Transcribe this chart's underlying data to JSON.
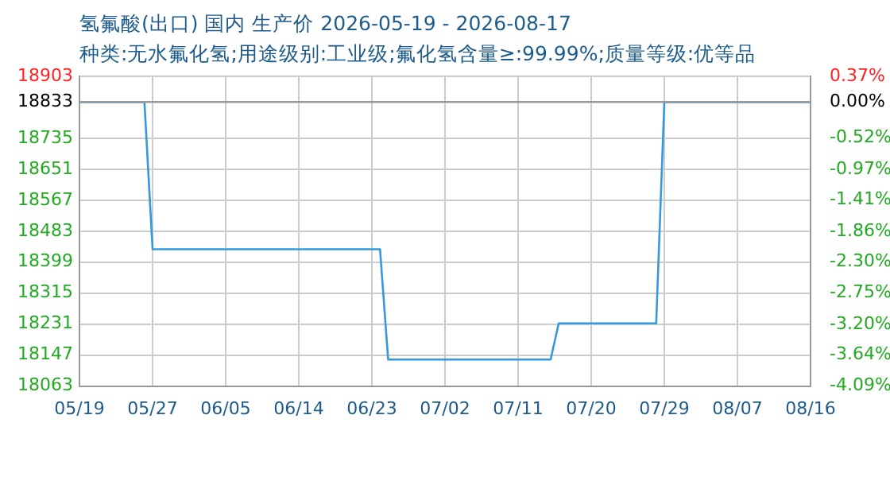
{
  "chart_data": {
    "type": "line",
    "title": "氢氟酸(出口) 国内 生产价 2026-05-19 - 2026-08-17",
    "subtitle": "种类:无水氟化氢;用途级别:工业级;氟化氢含量≥:99.99%;质量等级:优等品",
    "x": [
      "2026-05-18",
      "2026-05-26",
      "2026-05-27",
      "2026-06-24",
      "2026-06-25",
      "2026-07-15",
      "2026-07-16",
      "2026-07-28",
      "2026-07-29",
      "2026-08-16"
    ],
    "series": [
      {
        "color": "#3399dd",
        "values": [
          18833,
          18833,
          18434,
          18434,
          18135,
          18135,
          18233,
          18233,
          18833,
          18833
        ]
      }
    ],
    "xlim": [
      "2026-05-18",
      "2026-08-16"
    ],
    "xticks": [
      {
        "value": "2026-05-18",
        "label": "05/19"
      },
      {
        "value": "2026-05-27",
        "label": "05/27"
      },
      {
        "value": "2026-06-05",
        "label": "06/05"
      },
      {
        "value": "2026-06-14",
        "label": "06/14"
      },
      {
        "value": "2026-06-23",
        "label": "06/23"
      },
      {
        "value": "2026-07-02",
        "label": "07/02"
      },
      {
        "value": "2026-07-11",
        "label": "07/11"
      },
      {
        "value": "2026-07-20",
        "label": "07/20"
      },
      {
        "value": "2026-07-29",
        "label": "07/29"
      },
      {
        "value": "2026-08-07",
        "label": "08/07"
      },
      {
        "value": "2026-08-16",
        "label": "08/16"
      }
    ],
    "ylim": [
      18063,
      18903
    ],
    "yticks": [
      18063,
      18147,
      18231,
      18315,
      18399,
      18483,
      18567,
      18651,
      18735,
      18833,
      18903
    ],
    "y2lim": [
      -4.09,
      0.37
    ],
    "y2ticks": [
      {
        "value": -4.09,
        "label": "-4.09%"
      },
      {
        "value": -3.64,
        "label": "-3.64%"
      },
      {
        "value": -3.2,
        "label": "-3.20%"
      },
      {
        "value": -2.75,
        "label": "-2.75%"
      },
      {
        "value": -2.3,
        "label": "-2.30%"
      },
      {
        "value": -1.86,
        "label": "-1.86%"
      },
      {
        "value": -1.41,
        "label": "-1.41%"
      },
      {
        "value": -0.97,
        "label": "-0.97%"
      },
      {
        "value": -0.52,
        "label": "-0.52%"
      },
      {
        "value": 0,
        "label": "0.00%"
      },
      {
        "value": 0.37,
        "label": "0.37%"
      }
    ],
    "ref_lines": [
      {
        "axis": "y2",
        "value": 0,
        "color": "#999999"
      }
    ],
    "grid": true,
    "legend": false,
    "marker": "none",
    "line_style": "solid"
  }
}
